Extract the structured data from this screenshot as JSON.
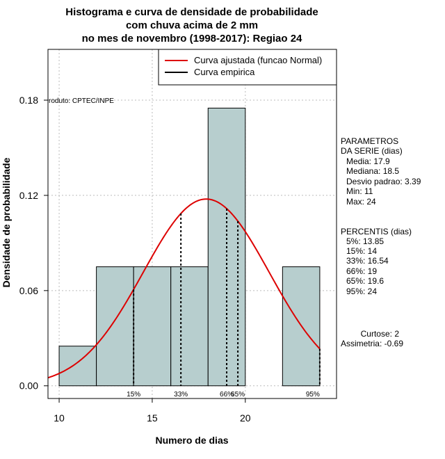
{
  "chart_data": {
    "type": "bar",
    "title_lines": [
      "Histograma e curva de densidade de probabilidade",
      "com chuva acima de 2 mm",
      "no mes de novembro (1998-2017): Regiao 24"
    ],
    "xlabel": "Numero de dias",
    "ylabel": "Densidade de probabilidade",
    "xlim": [
      9.4,
      24.9
    ],
    "ylim": [
      -0.008,
      0.212
    ],
    "x_ticks": [
      10,
      15,
      20
    ],
    "x_tick_labels": [
      "10",
      "15",
      "20"
    ],
    "y_ticks": [
      0.0,
      0.06,
      0.12,
      0.18
    ],
    "y_tick_labels": [
      "0.00",
      "0.06",
      "0.12",
      "0.18"
    ],
    "grid": true,
    "bin_width": 2,
    "bins": [
      {
        "start": 10,
        "end": 12,
        "density": 0.025
      },
      {
        "start": 12,
        "end": 14,
        "density": 0.075
      },
      {
        "start": 14,
        "end": 16,
        "density": 0.075
      },
      {
        "start": 16,
        "end": 18,
        "density": 0.075
      },
      {
        "start": 18,
        "end": 20,
        "density": 0.175
      },
      {
        "start": 20,
        "end": 22,
        "density": 0.0
      },
      {
        "start": 22,
        "end": 24,
        "density": 0.075
      }
    ],
    "bar_color": "#b7cece",
    "normal_curve": {
      "mean": 17.9,
      "sd": 3.39,
      "color": "#dd0000",
      "x_range": [
        9.4,
        24
      ]
    },
    "percentile_lines": [
      {
        "x": 14,
        "label": "15%"
      },
      {
        "x": 16.54,
        "label": "33%"
      },
      {
        "x": 19,
        "label": "66%"
      },
      {
        "x": 19.6,
        "label": "65%"
      },
      {
        "x": 24,
        "label": "95%"
      }
    ],
    "legend": {
      "position": "top-right",
      "entries": [
        {
          "label": "Curva ajustada (funcao Normal)",
          "color": "#dd0000"
        },
        {
          "label": "Curva empirica",
          "color": "#000000"
        }
      ]
    },
    "source_label": "roduto: CPTEC/INPE",
    "parametros": {
      "header": [
        "PARAMETROS",
        "DA SERIE (dias)"
      ],
      "lines": [
        "Media: 17.9",
        "Mediana: 18.5",
        "Desvio padrao: 3.39",
        "Min: 11",
        "Max: 24"
      ]
    },
    "percentis": {
      "header": "PERCENTIS (dias)",
      "lines": [
        "5%: 13.85",
        "15%: 14",
        "33%: 16.54",
        "66%: 19",
        "65%: 19.6",
        "95%: 24"
      ]
    },
    "stats": [
      "Curtose: 2",
      "Assimetria: -0.69"
    ]
  }
}
